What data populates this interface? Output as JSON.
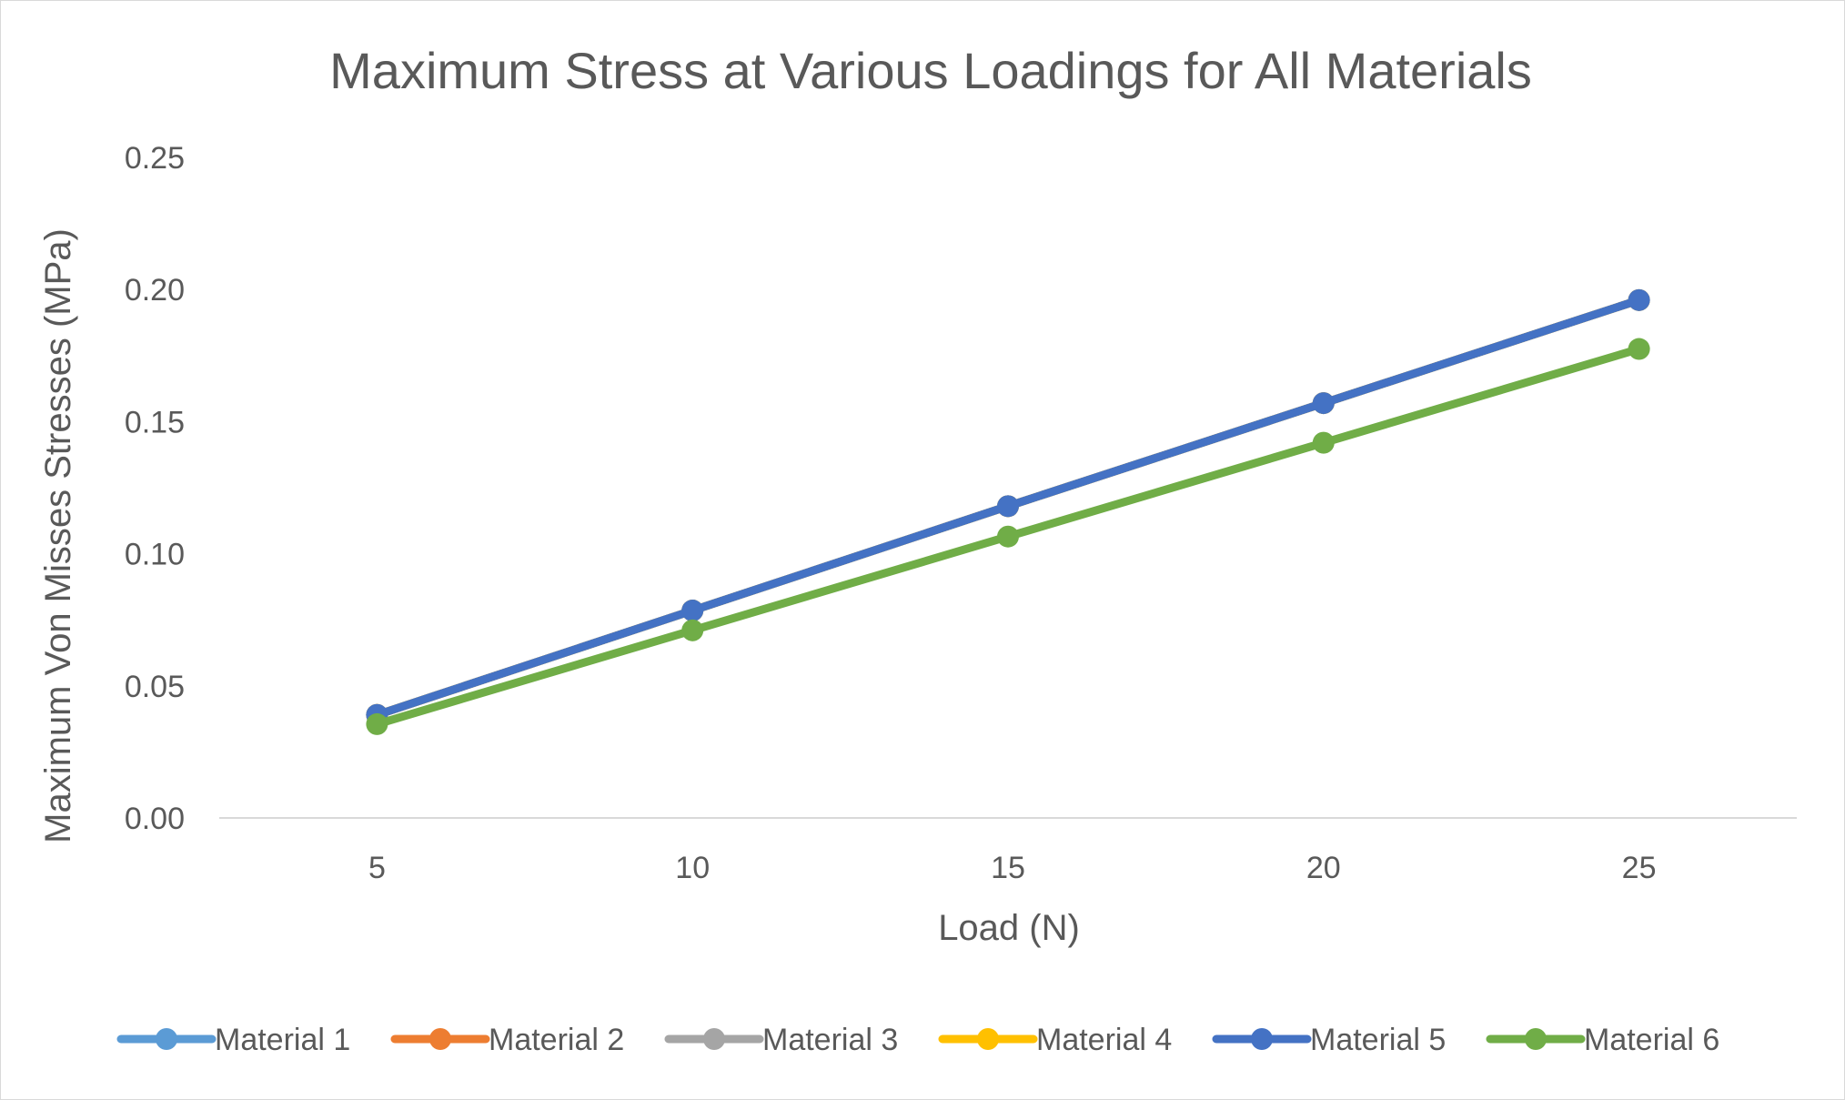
{
  "chart_data": {
    "type": "line",
    "title": "Maximum Stress at Various Loadings for All Materials",
    "xlabel": "Load (N)",
    "ylabel": "Maximum Von Misses Stresses (MPa)",
    "categories": [
      "5",
      "10",
      "15",
      "20",
      "25"
    ],
    "x": [
      5,
      10,
      15,
      20,
      25
    ],
    "ylim": [
      0,
      0.25
    ],
    "yticks": [
      "0.00",
      "0.05",
      "0.10",
      "0.15",
      "0.20",
      "0.25"
    ],
    "ytick_values": [
      0,
      0.05,
      0.1,
      0.15,
      0.2,
      0.25
    ],
    "grid": false,
    "legend_position": "bottom",
    "series": [
      {
        "name": "Material 1",
        "color": "#5B9BD5",
        "values": [
          0.039,
          0.0785,
          0.118,
          0.157,
          0.196
        ]
      },
      {
        "name": "Material 2",
        "color": "#ED7D31",
        "values": [
          0.039,
          0.0785,
          0.118,
          0.157,
          0.196
        ]
      },
      {
        "name": "Material 3",
        "color": "#A5A5A5",
        "values": [
          0.039,
          0.0785,
          0.118,
          0.157,
          0.196
        ]
      },
      {
        "name": "Material 4",
        "color": "#FFC000",
        "values": [
          0.039,
          0.0785,
          0.118,
          0.157,
          0.196
        ]
      },
      {
        "name": "Material 5",
        "color": "#4472C4",
        "values": [
          0.039,
          0.0785,
          0.118,
          0.157,
          0.196
        ]
      },
      {
        "name": "Material 6",
        "color": "#70AD47",
        "values": [
          0.0355,
          0.071,
          0.1065,
          0.142,
          0.1775
        ]
      }
    ]
  }
}
